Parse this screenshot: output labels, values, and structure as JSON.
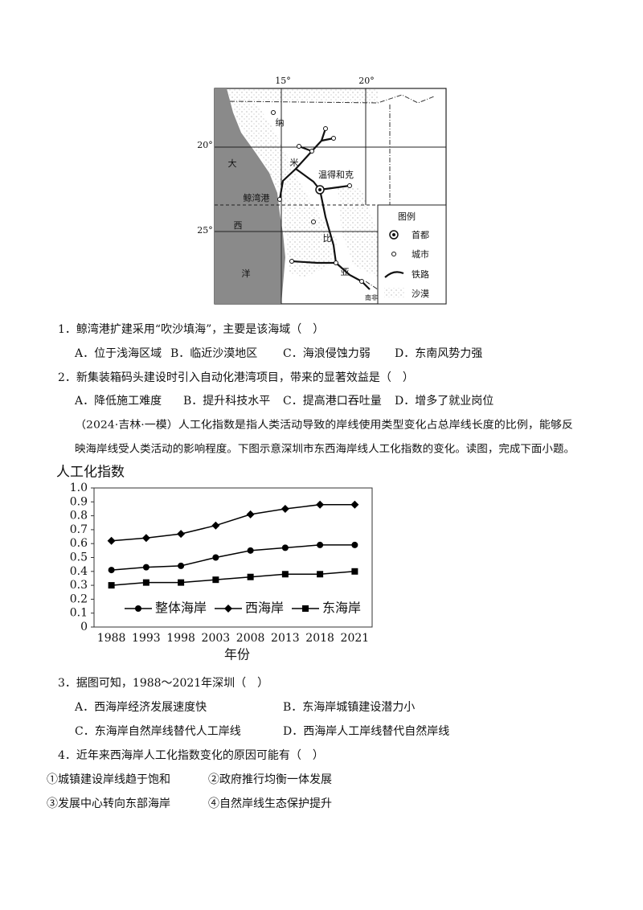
{
  "map": {
    "labels": [
      "15°",
      "20°",
      "20°",
      "25°",
      "纳",
      "大",
      "米",
      "温得和克",
      "鲸湾港",
      "西",
      "比",
      "洋",
      "亚",
      "南非"
    ],
    "legend": {
      "title": "图例",
      "items": [
        "首都",
        "城市",
        "铁路",
        "沙漠"
      ]
    }
  },
  "questions": [
    {
      "stem": "1．鲸湾港扩建采用“吹沙填海”，主要是该海域（　）",
      "options": [
        "A．位于浅海区域",
        "B．临近沙漠地区",
        "C．海浪侵蚀力弱",
        "D．东南风势力强"
      ]
    },
    {
      "stem": "2．新集装箱码头建设时引入自动化港湾项目，带来的显著效益是（　）",
      "options": [
        "A．降低施工难度",
        "B．提升科技水平",
        "C．提高港口吞吐量",
        "D．增多了就业岗位"
      ]
    }
  ],
  "passage": [
    "（2024·吉林·一模）人工化指数是指人类活动导致的岸线使用类型变化占总岸线长度的比例，能够反",
    "映海岸线受人类活动的影响程度。下图示意深圳市东西海岸线人工化指数的变化。读图，完成下面小题。"
  ],
  "chart_data": {
    "type": "line",
    "ylabel": "人工化指数",
    "xlabel": "年份",
    "categories": [
      "1988",
      "1993",
      "1998",
      "2003",
      "2008",
      "2013",
      "2018",
      "2021"
    ],
    "series": [
      {
        "name": "整体海岸",
        "color": "#000000",
        "marker": "circle",
        "values": [
          0.41,
          0.43,
          0.44,
          0.5,
          0.55,
          0.57,
          0.59,
          0.59
        ]
      },
      {
        "name": "西海岸",
        "color": "#000000",
        "marker": "diamond",
        "values": [
          0.62,
          0.64,
          0.67,
          0.73,
          0.81,
          0.85,
          0.88,
          0.88
        ]
      },
      {
        "name": "东海岸",
        "color": "#000000",
        "marker": "square",
        "values": [
          0.3,
          0.32,
          0.32,
          0.34,
          0.36,
          0.38,
          0.38,
          0.4
        ]
      }
    ],
    "ylim": [
      0,
      1
    ],
    "yticks": [
      0,
      0.1,
      0.2,
      0.3,
      0.4,
      0.5,
      0.6,
      0.7,
      0.8,
      0.9,
      {
        "value": 1,
        "label": "1.0"
      }
    ],
    "legend": "lower right"
  },
  "questions2": [
    {
      "stem": "3．据图可知，1988～2021年深圳（　）",
      "options": [
        "A．西海岸经济发展速度快",
        "B．东海岸城镇建设潜力小",
        "C．东海岸自然岸线替代人工岸线",
        "D．西海岸人工岸线替代自然岸线"
      ]
    },
    {
      "stem": "4．近年来西海岸人工化指数变化的原因可能有（　）",
      "options": [
        "①城镇建设岸线趋于饱和",
        "②政府推行均衡一体发展",
        "③发展中心转向东部海岸",
        "④自然岸线生态保护提升"
      ]
    }
  ]
}
